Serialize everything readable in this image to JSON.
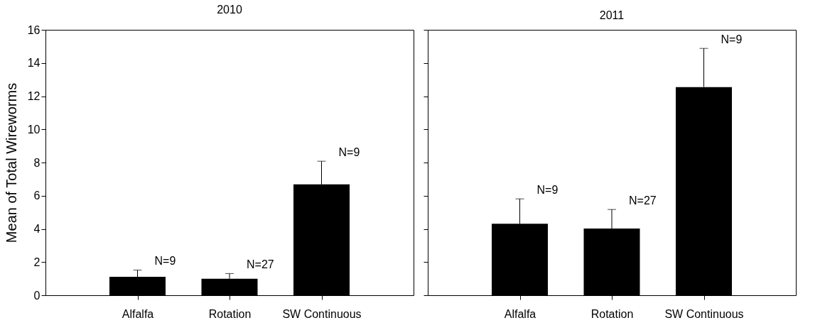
{
  "chart_data": [
    {
      "type": "bar",
      "title": "2010",
      "ylabel": "Mean of Total Wireworms",
      "categories": [
        "Alfalfa",
        "Rotation",
        "SW Continuous"
      ],
      "series": [
        {
          "color": "#000000",
          "values": [
            1.11,
            1.0,
            6.68
          ],
          "errors": [
            [
              1.11,
              1.52
            ],
            [
              1.0,
              1.31
            ],
            [
              6.68,
              8.08
            ]
          ]
        }
      ],
      "ylim": [
        0,
        16
      ],
      "yticks": [
        0,
        2,
        4,
        6,
        8,
        10,
        12,
        14,
        16
      ],
      "grid": false,
      "annotations": [
        {
          "text": "N=9",
          "x": "Alfalfa",
          "y": 1.52
        },
        {
          "text": "N=27",
          "x": "Rotation",
          "y": 1.31
        },
        {
          "text": "N=9",
          "x": "SW Continuous",
          "y": 8.08
        }
      ]
    },
    {
      "type": "bar",
      "title": "2011",
      "categories": [
        "Alfalfa",
        "Rotation",
        "SW Continuous"
      ],
      "series": [
        {
          "color": "#000000",
          "values": [
            4.31,
            4.02,
            12.55
          ],
          "errors": [
            [
              4.31,
              5.81
            ],
            [
              4.02,
              5.17
            ],
            [
              12.55,
              14.88
            ]
          ]
        }
      ],
      "ylim": [
        0,
        16
      ],
      "yticks": [
        0,
        2,
        4,
        6,
        8,
        10,
        12,
        14,
        16
      ],
      "grid": false,
      "tick_labels": "x",
      "annotations": [
        {
          "text": "N=9",
          "x": "Alfalfa",
          "y": 5.81
        },
        {
          "text": "N=27",
          "x": "Rotation",
          "y": 5.17
        },
        {
          "text": "N=9",
          "x": "SW Continuous",
          "y": 14.88
        }
      ]
    }
  ]
}
